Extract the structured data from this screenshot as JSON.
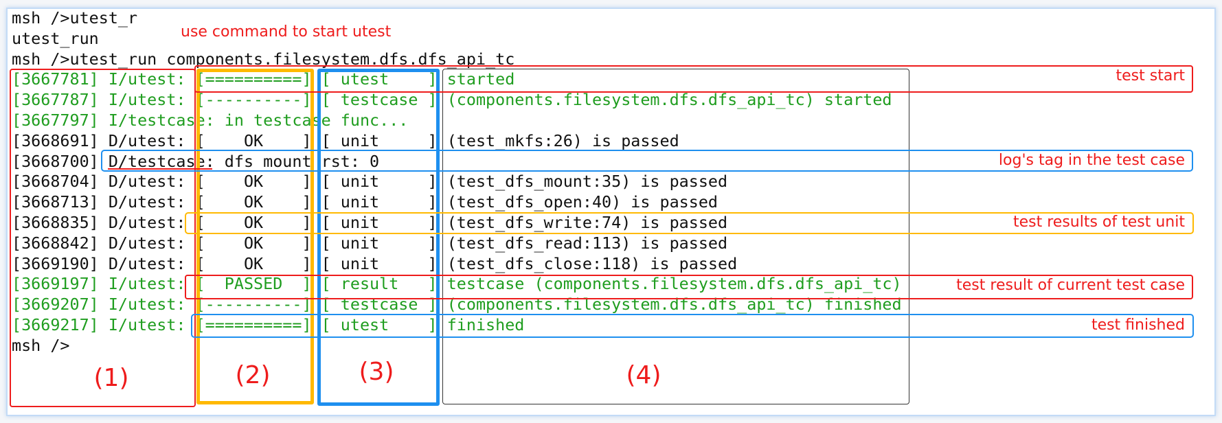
{
  "colors": {
    "log_info": "#1f9d1f",
    "log_debug": "#111111",
    "annotation_text": "#ee1c1c",
    "red_box": "#ee1c1c",
    "orange_box": "#ffb900",
    "blue_box": "#1e8fef",
    "black_box": "#333333"
  },
  "console": {
    "lines": [
      {
        "level": "plain",
        "text": "msh />utest_r"
      },
      {
        "level": "plain",
        "text": "utest_run"
      },
      {
        "level": "plain",
        "text": "msh />utest_run components.filesystem.dfs.dfs_api_tc"
      },
      {
        "level": "info",
        "text": "[3667781] I/utest: [==========] [ utest    ] started"
      },
      {
        "level": "info",
        "text": "[3667787] I/utest: [----------] [ testcase ] (components.filesystem.dfs.dfs_api_tc) started"
      },
      {
        "level": "info",
        "text": "[3667797] I/testcase: in testcase func..."
      },
      {
        "level": "debug",
        "text": "[3668691] D/utest: [    OK    ] [ unit     ] (test_mkfs:26) is passed"
      },
      {
        "level": "debug",
        "text": "[3668700] D/testcase: dfs mount rst: 0"
      },
      {
        "level": "debug",
        "text": "[3668704] D/utest: [    OK    ] [ unit     ] (test_dfs_mount:35) is passed"
      },
      {
        "level": "debug",
        "text": "[3668713] D/utest: [    OK    ] [ unit     ] (test_dfs_open:40) is passed"
      },
      {
        "level": "debug",
        "text": "[3668835] D/utest: [    OK    ] [ unit     ] (test_dfs_write:74) is passed"
      },
      {
        "level": "debug",
        "text": "[3668842] D/utest: [    OK    ] [ unit     ] (test_dfs_read:113) is passed"
      },
      {
        "level": "debug",
        "text": "[3669190] D/utest: [    OK    ] [ unit     ] (test_dfs_close:118) is passed"
      },
      {
        "level": "info",
        "text": "[3669197] I/utest: [  PASSED  ] [ result   ] testcase (components.filesystem.dfs.dfs_api_tc)"
      },
      {
        "level": "info",
        "text": "[3669207] I/utest: [----------] [ testcase ] (components.filesystem.dfs.dfs_api_tc) finished"
      },
      {
        "level": "info",
        "text": "[3669217] I/utest: [==========] [ utest    ] finished"
      },
      {
        "level": "plain",
        "text": "msh />"
      }
    ]
  },
  "annotations": {
    "use_command": "use command to start utest",
    "test_start": "test start",
    "log_tag": "log's tag in the test case",
    "unit_results": "test results of test unit",
    "case_result": "test result of current test case",
    "test_finished": "test finished"
  },
  "columns": {
    "c1": "(1)",
    "c2": "(2)",
    "c3": "(3)",
    "c4": "(4)"
  }
}
